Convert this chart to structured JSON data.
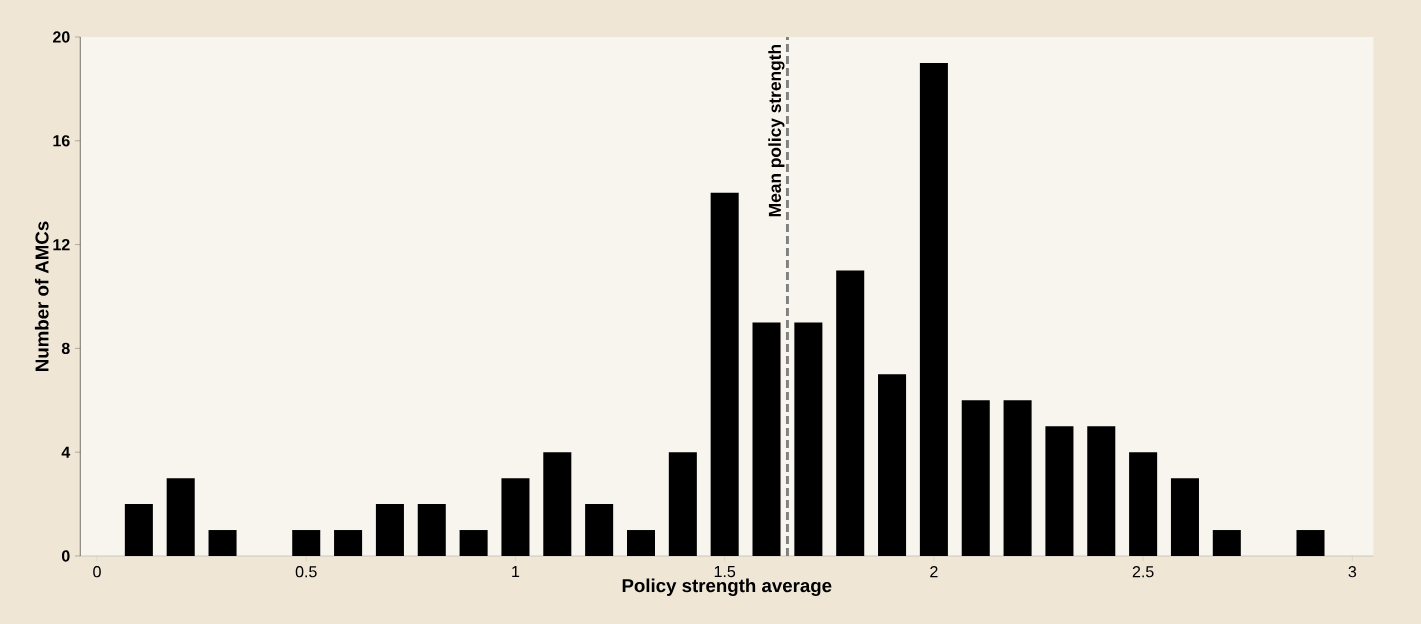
{
  "chart_data": {
    "type": "bar",
    "xlabel": "Policy strength average",
    "ylabel": "Number of AMCs",
    "x": [
      0.1,
      0.2,
      0.3,
      0.5,
      0.6,
      0.7,
      0.8,
      0.9,
      1.0,
      1.1,
      1.2,
      1.3,
      1.4,
      1.5,
      1.6,
      1.7,
      1.8,
      1.9,
      2.0,
      2.1,
      2.2,
      2.3,
      2.4,
      2.5,
      2.6,
      2.7,
      2.9
    ],
    "values": [
      2,
      3,
      1,
      1,
      1,
      2,
      2,
      1,
      3,
      4,
      2,
      1,
      4,
      14,
      9,
      9,
      11,
      7,
      19,
      6,
      6,
      5,
      5,
      4,
      3,
      1,
      1
    ],
    "color": "#000000",
    "xlim": [
      -0.04,
      3.05
    ],
    "xticks": [
      0,
      0.5,
      1,
      1.5,
      2,
      2.5,
      3
    ],
    "ylim": [
      0,
      20
    ],
    "yticks": [
      0,
      4,
      8,
      12,
      16,
      20
    ],
    "ref_lines": [
      {
        "axis": "x",
        "value": 1.65,
        "label": "Mean policy strength",
        "color": "#808080",
        "line_style": "dashed"
      }
    ]
  }
}
